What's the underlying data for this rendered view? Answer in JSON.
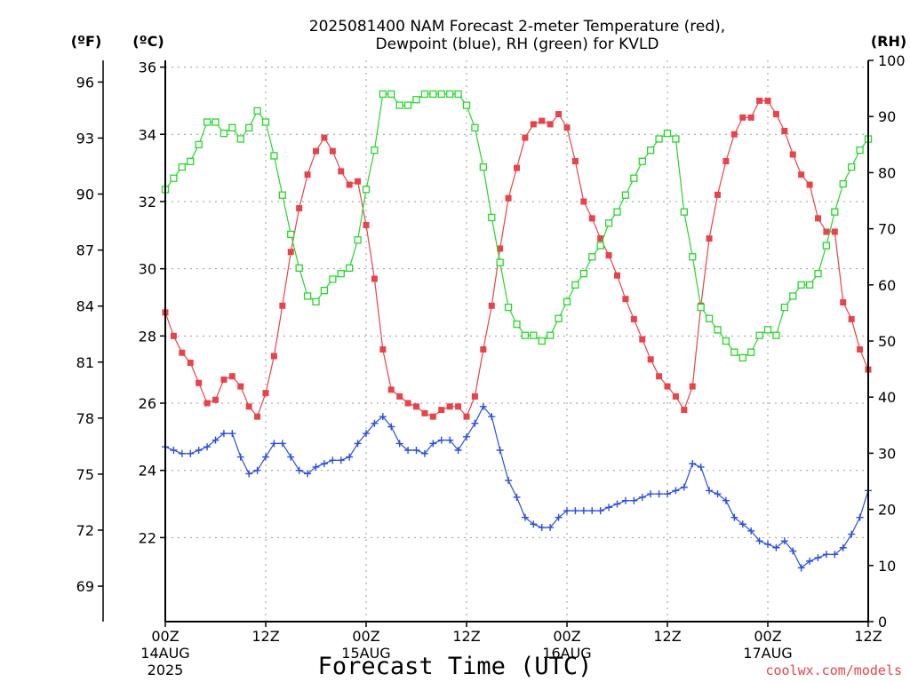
{
  "title_line1": "2025081400 NAM Forecast 2-meter Temperature (red),",
  "title_line2": "Dewpoint (blue), RH (green) for KVLD",
  "unit_f": "(ºF)",
  "unit_c": "(ºC)",
  "unit_rh": "(RH)",
  "xlabel": "Forecast Time (UTC)",
  "credit": "coolwx.com/models",
  "colors": {
    "temp": "#e8434a",
    "dew": "#2b4ee0",
    "rh": "#27d62b",
    "axis": "#000000",
    "grid": "#9a9a9a"
  },
  "chart_data": {
    "type": "line",
    "x_unit": "forecast hour from 2025-08-14 00Z",
    "x_ticks": [
      {
        "x": 0,
        "label": "00Z",
        "sub1": "14AUG",
        "sub2": "2025"
      },
      {
        "x": 12,
        "label": "12Z"
      },
      {
        "x": 24,
        "label": "00Z",
        "sub1": "15AUG"
      },
      {
        "x": 36,
        "label": "12Z"
      },
      {
        "x": 48,
        "label": "00Z",
        "sub1": "16AUG"
      },
      {
        "x": 60,
        "label": "12Z"
      },
      {
        "x": 72,
        "label": "00Z",
        "sub1": "17AUG"
      },
      {
        "x": 84,
        "label": "12Z"
      }
    ],
    "xlim": [
      0,
      84
    ],
    "ylim_c": [
      19.5,
      36.2
    ],
    "y_ticks_c": [
      22,
      24,
      26,
      28,
      30,
      32,
      34,
      36
    ],
    "y_ticks_f": [
      69,
      72,
      75,
      78,
      81,
      84,
      87,
      90,
      93,
      96
    ],
    "ylim_rh": [
      0,
      100
    ],
    "y_ticks_rh": [
      0,
      10,
      20,
      30,
      40,
      50,
      60,
      70,
      80,
      90,
      100
    ],
    "grid": true,
    "series": [
      {
        "name": "Temperature",
        "axis": "c",
        "marker": "filled-square",
        "color": "#e8434a",
        "x": [
          0,
          1,
          2,
          3,
          4,
          5,
          6,
          7,
          8,
          9,
          10,
          11,
          12,
          13,
          14,
          15,
          16,
          17,
          18,
          19,
          20,
          21,
          22,
          23,
          24,
          25,
          26,
          27,
          28,
          29,
          30,
          31,
          32,
          33,
          34,
          35,
          36,
          37,
          38,
          39,
          40,
          41,
          42,
          43,
          44,
          45,
          46,
          47,
          48,
          49,
          50,
          51,
          52,
          53,
          54,
          55,
          56,
          57,
          58,
          59,
          60,
          61,
          62,
          63,
          64,
          65,
          66,
          67,
          68,
          69,
          70,
          71,
          72,
          73,
          74,
          75,
          76,
          77,
          78,
          79,
          80,
          81,
          82,
          83,
          84
        ],
        "values": [
          28.7,
          28.0,
          27.5,
          27.2,
          26.6,
          26.0,
          26.1,
          26.7,
          26.8,
          26.5,
          25.9,
          25.6,
          26.3,
          27.4,
          28.9,
          30.5,
          31.8,
          32.8,
          33.5,
          33.9,
          33.5,
          32.9,
          32.5,
          32.6,
          31.3,
          29.7,
          27.6,
          26.4,
          26.2,
          26.0,
          25.9,
          25.7,
          25.6,
          25.8,
          25.9,
          25.9,
          25.6,
          26.2,
          27.6,
          28.9,
          30.6,
          32.1,
          33.0,
          33.9,
          34.3,
          34.4,
          34.3,
          34.6,
          34.2,
          33.2,
          32.0,
          31.5,
          30.9,
          30.4,
          29.8,
          29.1,
          28.5,
          27.9,
          27.3,
          26.8,
          26.5,
          26.2,
          25.8,
          26.5,
          28.9,
          30.9,
          32.2,
          33.2,
          34.0,
          34.5,
          34.5,
          35.0,
          35.0,
          34.6,
          34.1,
          33.4,
          32.8,
          32.5,
          31.5,
          31.1,
          31.1,
          29.0,
          28.5,
          27.6,
          27.0
        ]
      },
      {
        "name": "Dewpoint",
        "axis": "c",
        "marker": "plus",
        "color": "#2b4ee0",
        "x": [
          0,
          1,
          2,
          3,
          4,
          5,
          6,
          7,
          8,
          9,
          10,
          11,
          12,
          13,
          14,
          15,
          16,
          17,
          18,
          19,
          20,
          21,
          22,
          23,
          24,
          25,
          26,
          27,
          28,
          29,
          30,
          31,
          32,
          33,
          34,
          35,
          36,
          37,
          38,
          39,
          40,
          41,
          42,
          43,
          44,
          45,
          46,
          47,
          48,
          49,
          50,
          51,
          52,
          53,
          54,
          55,
          56,
          57,
          58,
          59,
          60,
          61,
          62,
          63,
          64,
          65,
          66,
          67,
          68,
          69,
          70,
          71,
          72,
          73,
          74,
          75,
          76,
          77,
          78,
          79,
          80,
          81,
          82,
          83,
          84
        ],
        "values": [
          24.7,
          24.6,
          24.5,
          24.5,
          24.6,
          24.7,
          24.9,
          25.1,
          25.1,
          24.4,
          23.9,
          24.0,
          24.4,
          24.8,
          24.8,
          24.4,
          24.0,
          23.9,
          24.1,
          24.2,
          24.3,
          24.3,
          24.4,
          24.8,
          25.1,
          25.4,
          25.6,
          25.3,
          24.8,
          24.6,
          24.6,
          24.5,
          24.8,
          24.9,
          24.9,
          24.6,
          25.0,
          25.4,
          25.9,
          25.6,
          24.6,
          23.7,
          23.2,
          22.6,
          22.4,
          22.3,
          22.3,
          22.6,
          22.8,
          22.8,
          22.8,
          22.8,
          22.8,
          22.9,
          23.0,
          23.1,
          23.1,
          23.2,
          23.3,
          23.3,
          23.3,
          23.4,
          23.5,
          24.2,
          24.1,
          23.4,
          23.3,
          23.1,
          22.6,
          22.4,
          22.2,
          21.9,
          21.8,
          21.7,
          21.9,
          21.6,
          21.1,
          21.3,
          21.4,
          21.5,
          21.5,
          21.7,
          22.1,
          22.6,
          23.4
        ]
      },
      {
        "name": "RH",
        "axis": "rh",
        "marker": "open-square",
        "color": "#27d62b",
        "x": [
          0,
          1,
          2,
          3,
          4,
          5,
          6,
          7,
          8,
          9,
          10,
          11,
          12,
          13,
          14,
          15,
          16,
          17,
          18,
          19,
          20,
          21,
          22,
          23,
          24,
          25,
          26,
          27,
          28,
          29,
          30,
          31,
          32,
          33,
          34,
          35,
          36,
          37,
          38,
          39,
          40,
          41,
          42,
          43,
          44,
          45,
          46,
          47,
          48,
          49,
          50,
          51,
          52,
          53,
          54,
          55,
          56,
          57,
          58,
          59,
          60,
          61,
          62,
          63,
          64,
          65,
          66,
          67,
          68,
          69,
          70,
          71,
          72,
          73,
          74,
          75,
          76,
          77,
          78,
          79,
          80,
          81,
          82,
          83,
          84
        ],
        "values": [
          77,
          79,
          81,
          82,
          85,
          89,
          89,
          87,
          88,
          86,
          88,
          91,
          89,
          83,
          76,
          69,
          63,
          58,
          57,
          59,
          61,
          62,
          63,
          68,
          77,
          84,
          94,
          94,
          92,
          92,
          93,
          94,
          94,
          94,
          94,
          94,
          92,
          88,
          81,
          72,
          64,
          56,
          53,
          51,
          51,
          50,
          51,
          54,
          57,
          60,
          62,
          65,
          67,
          71,
          73,
          76,
          79,
          82,
          84,
          86,
          87,
          86,
          73,
          65,
          56,
          54,
          52,
          50,
          48,
          47,
          48,
          51,
          52,
          51,
          56,
          58,
          60,
          60,
          62,
          67,
          73,
          78,
          81,
          84,
          86
        ]
      }
    ]
  }
}
